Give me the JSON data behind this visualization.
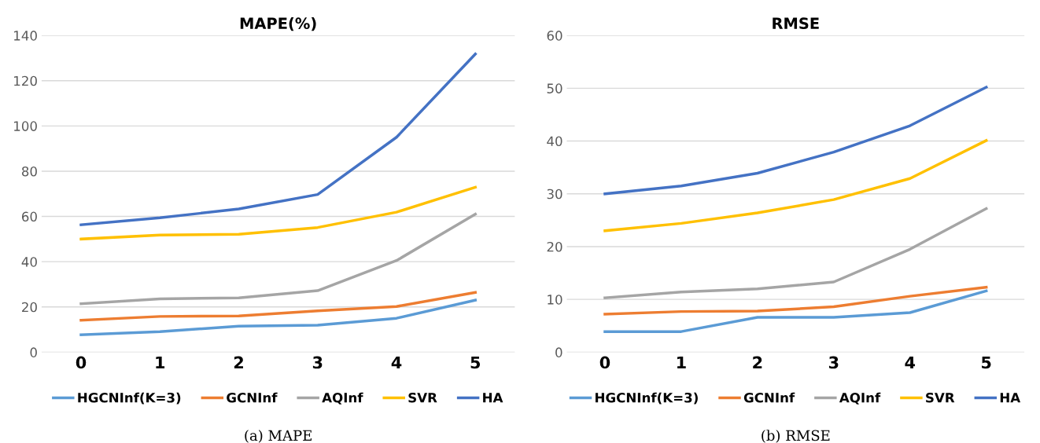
{
  "chart_data": [
    {
      "type": "line",
      "title": "MAPE(%)",
      "categories": [
        "0",
        "1",
        "2",
        "3",
        "4",
        "5"
      ],
      "ylim": [
        0,
        140
      ],
      "yticks": [
        0,
        20,
        40,
        60,
        80,
        100,
        120,
        140
      ],
      "grid": "y",
      "legend": "bottom",
      "annotations": [
        "(a) MAPE"
      ],
      "series": [
        {
          "name": "HGCNInf(K=3)",
          "color": "#5b9bd5",
          "values": [
            7.7,
            9.1,
            11.5,
            11.9,
            15,
            23
          ]
        },
        {
          "name": "GCNInf",
          "color": "#ed7d31",
          "values": [
            14.1,
            15.8,
            16,
            18.3,
            20.2,
            26.4
          ]
        },
        {
          "name": "AQInf",
          "color": "#a5a5a5",
          "values": [
            21.4,
            23.6,
            24,
            27.2,
            40.5,
            61
          ]
        },
        {
          "name": "SVR",
          "color": "#ffc000",
          "values": [
            50,
            51.8,
            52.1,
            55.1,
            61.9,
            72.9
          ]
        },
        {
          "name": "HA",
          "color": "#4472c4",
          "values": [
            56.3,
            59.4,
            63.3,
            69.7,
            95,
            131.8
          ]
        }
      ]
    },
    {
      "type": "line",
      "title": "RMSE",
      "categories": [
        "0",
        "1",
        "2",
        "3",
        "4",
        "5"
      ],
      "ylim": [
        0,
        60
      ],
      "yticks": [
        0,
        10,
        20,
        30,
        40,
        50,
        60
      ],
      "grid": "y",
      "legend": "bottom",
      "annotations": [
        "(b) RMSE"
      ],
      "series": [
        {
          "name": "HGCNInf(K=3)",
          "color": "#5b9bd5",
          "values": [
            3.9,
            3.9,
            6.6,
            6.6,
            7.5,
            11.6
          ]
        },
        {
          "name": "GCNInf",
          "color": "#ed7d31",
          "values": [
            7.2,
            7.7,
            7.8,
            8.6,
            10.6,
            12.3
          ]
        },
        {
          "name": "AQInf",
          "color": "#a5a5a5",
          "values": [
            10.3,
            11.4,
            12,
            13.3,
            19.5,
            27.2
          ]
        },
        {
          "name": "SVR",
          "color": "#ffc000",
          "values": [
            23,
            24.4,
            26.4,
            28.9,
            32.9,
            40.1
          ]
        },
        {
          "name": "HA",
          "color": "#4472c4",
          "values": [
            30,
            31.5,
            33.9,
            37.9,
            42.9,
            50.2
          ]
        }
      ]
    }
  ]
}
